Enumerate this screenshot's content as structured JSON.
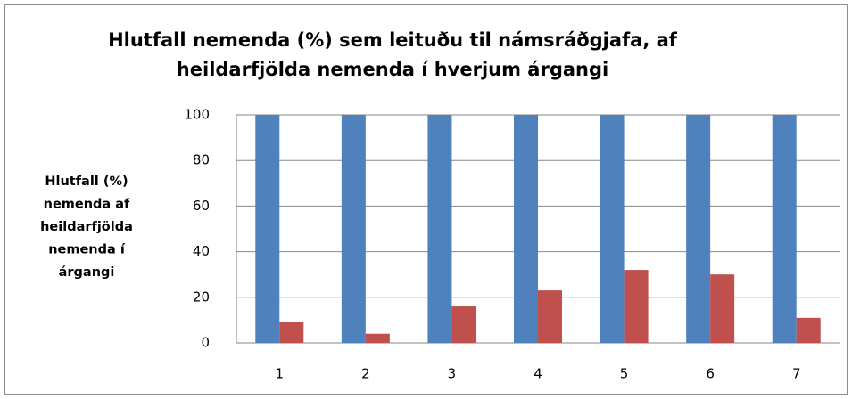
{
  "chart_data": {
    "type": "bar",
    "title": [
      "Hlutfall nemenda (%) sem leituðu til námsráðgjafa, af",
      "heildarfjölda nemenda í hverjum árgangi"
    ],
    "y_label": [
      "Hlutfall (%)",
      "nemenda af",
      "heildarfjölda",
      "nemenda í",
      "árgangi"
    ],
    "categories": [
      "1",
      "2",
      "3",
      "4",
      "5",
      "6",
      "7"
    ],
    "series": [
      {
        "color": "#4f81bd",
        "values": [
          100,
          100,
          100,
          100,
          100,
          100,
          100
        ]
      },
      {
        "color": "#c0504d",
        "values": [
          9,
          4,
          16,
          23,
          32,
          30,
          11
        ]
      }
    ],
    "ylim": [
      0,
      100
    ],
    "yticks": [
      0,
      20,
      40,
      60,
      80,
      100
    ],
    "grid": true
  }
}
